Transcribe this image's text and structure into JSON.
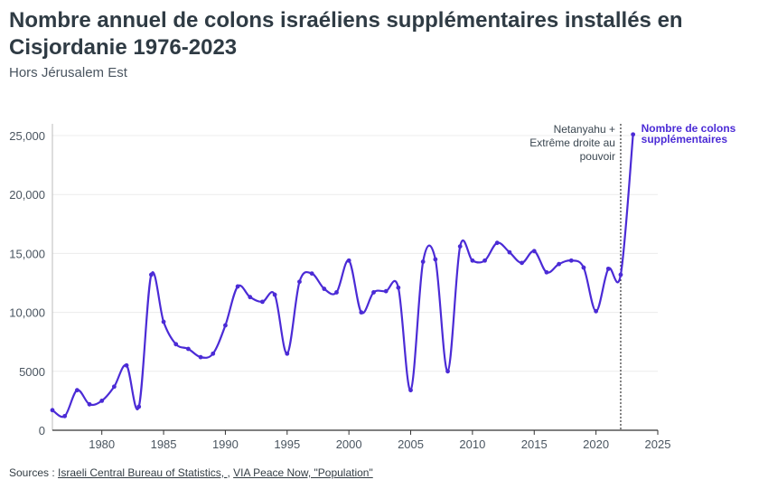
{
  "header": {
    "title": "Nombre annuel de colons israéliens supplémentaires installés en Cisjordanie 1976-2023",
    "subtitle": "Hors Jérusalem Est"
  },
  "footer": {
    "prefix": "Sources : ",
    "link1": "Israeli Central Bureau of Statistics, ",
    "sep": ", ",
    "link2": "VIA Peace Now, \"Population\""
  },
  "colors": {
    "line": "#4b2bd6",
    "grid": "#ececec",
    "axis": "#333333",
    "text": "#4a5560"
  },
  "chart_data": {
    "type": "line",
    "x": [
      1976,
      1977,
      1978,
      1979,
      1980,
      1981,
      1982,
      1983,
      1984,
      1985,
      1986,
      1987,
      1988,
      1989,
      1990,
      1991,
      1992,
      1993,
      1994,
      1995,
      1996,
      1997,
      1998,
      1999,
      2000,
      2001,
      2002,
      2003,
      2004,
      2005,
      2006,
      2007,
      2008,
      2009,
      2010,
      2011,
      2012,
      2013,
      2014,
      2015,
      2016,
      2017,
      2018,
      2019,
      2020,
      2021,
      2022,
      2023
    ],
    "series": [
      {
        "name": "Nombre de colons supplémentaires",
        "values": [
          1700,
          1200,
          3400,
          2200,
          2500,
          3700,
          5500,
          2000,
          13200,
          9200,
          7300,
          6900,
          6200,
          6500,
          8900,
          12200,
          11300,
          10900,
          11500,
          6500,
          12600,
          13300,
          12000,
          11700,
          14400,
          10000,
          11700,
          11800,
          12100,
          3400,
          14300,
          14500,
          5000,
          15600,
          14400,
          14400,
          15900,
          15100,
          14200,
          15200,
          13400,
          14100,
          14400,
          13800,
          10100,
          13700,
          13200,
          25100
        ]
      }
    ],
    "xlim": [
      1976,
      2025
    ],
    "ylim": [
      0,
      26000
    ],
    "xticks": [
      1980,
      1985,
      1990,
      1995,
      2000,
      2005,
      2010,
      2015,
      2020,
      2025
    ],
    "yticks": [
      0,
      5000,
      10000,
      15000,
      20000,
      25000
    ],
    "ytick_labels": [
      "0",
      "5000",
      "10,000",
      "15,000",
      "20,000",
      "25,000"
    ],
    "grid": true,
    "annotation": {
      "x": 2022,
      "text_lines": [
        "Netanyahu +",
        "Extrême droite au",
        "pouvoir"
      ]
    },
    "series_label_lines": [
      "Nombre de colons",
      "supplémentaires"
    ]
  }
}
